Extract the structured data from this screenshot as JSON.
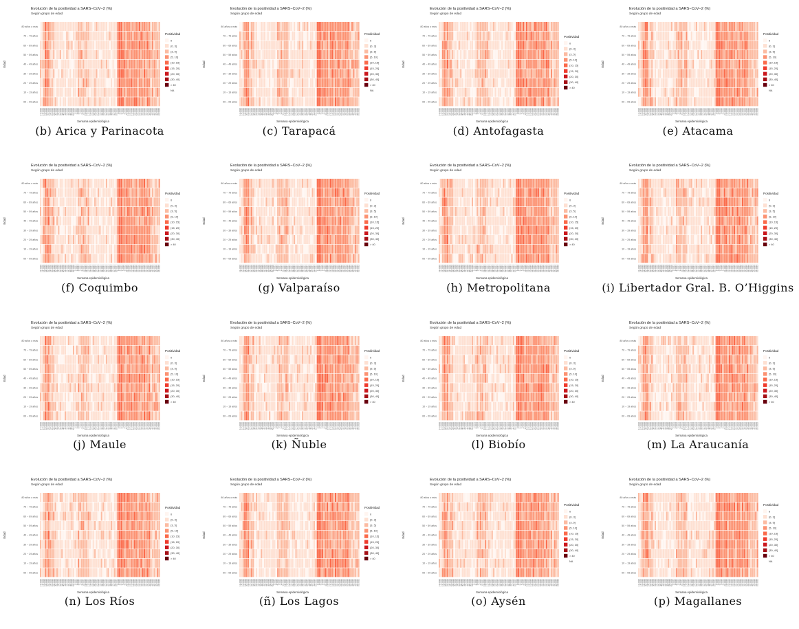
{
  "figure": {
    "panels": [
      {
        "caption": "(b)  Arica y Parinacota",
        "has_na": true
      },
      {
        "caption": "(c)  Tarapacá",
        "has_na": true
      },
      {
        "caption": "(d)  Antofagasta",
        "has_na": false
      },
      {
        "caption": "(e)  Atacama",
        "has_na": true
      },
      {
        "caption": "(f)  Coquimbo",
        "has_na": false
      },
      {
        "caption": "(g)  Valparaíso",
        "has_na": false
      },
      {
        "caption": "(h)  Metropolitana",
        "has_na": false
      },
      {
        "caption": "(i)  Libertador Gral. B. O’Higgins",
        "has_na": false
      },
      {
        "caption": "(j)  Maule",
        "has_na": false
      },
      {
        "caption": "(k)  Ñuble",
        "has_na": false
      },
      {
        "caption": "(l)  Biobío",
        "has_na": false
      },
      {
        "caption": "(m)  La Araucanía",
        "has_na": false
      },
      {
        "caption": "(n)  Los Ríos",
        "has_na": false
      },
      {
        "caption": "(ñ)  Los Lagos",
        "has_na": false
      },
      {
        "caption": "(o)  Aysén",
        "has_na": true
      },
      {
        "caption": "(p)  Magallanes",
        "has_na": true
      }
    ]
  },
  "chart_data": {
    "type": "heatmap",
    "title": "Evolución de la positividad a SARS−CoV−2 (%)",
    "subtitle": "Según grupo de edad",
    "xlabel": "Semana epidemiológica",
    "ylabel": "Edad",
    "y_categories": [
      "00 − 09 años",
      "10 − 19 años",
      "20 − 29 años",
      "30 − 39 años",
      "40 − 49 años",
      "50 − 59 años",
      "60 − 69 años",
      "70 − 79 años",
      "80 años o más"
    ],
    "x_categories": [
      "12-2020",
      "14-2020",
      "16-2020",
      "18-2020",
      "20-2020",
      "22-2020",
      "24-2020",
      "26-2020",
      "28-2020",
      "30-2020",
      "32-2020",
      "34-2020",
      "36-2020",
      "38-2020",
      "40-2020",
      "42-2020",
      "44-2020",
      "46-2020",
      "48-2020",
      "50-2020",
      "52-2020",
      "1-2021",
      "3-2021",
      "5-2021",
      "7-2021",
      "9-2021",
      "11-2021",
      "13-2021",
      "15-2021",
      "17-2021",
      "19-2021",
      "21-2021",
      "23-2021",
      "25-2021",
      "27-2021",
      "29-2021",
      "31-2021",
      "33-2021",
      "35-2021",
      "37-2021",
      "39-2021",
      "41-2021",
      "43-2021",
      "45-2021",
      "47-2021",
      "49-2021",
      "51-2021",
      "1-2022",
      "3-2022",
      "5-2022",
      "7-2022",
      "9-2022",
      "11-2022",
      "13-2022",
      "15-2022",
      "17-2022",
      "19-2022",
      "21-2022",
      "23-2022",
      "25-2022",
      "27-2022",
      "29-2022",
      "31-2022",
      "33-2022",
      "35-2022",
      "37-2022",
      "39-2022",
      "41-2022",
      "43-2022",
      "45-2022",
      "47-2022",
      "49-2022",
      "51-2022"
    ],
    "legend": {
      "title": "Positividad",
      "position": "right",
      "bins": [
        "0",
        "(0, 3]",
        "(3, 5]",
        "(5, 10]",
        "(10, 15]",
        "(15, 20]",
        "(20, 30]",
        "(30, 40]",
        "> 40"
      ],
      "colors": [
        "#fff5f0",
        "#fee0d2",
        "#fcbba1",
        "#fc9272",
        "#fb6a4a",
        "#ef3b2c",
        "#cb181d",
        "#a50f15",
        "#67000d"
      ],
      "na_label": "NA",
      "na_color": "#bdbdbd"
    },
    "pattern_profile": [
      1,
      1,
      2,
      3,
      3,
      3,
      2,
      2,
      2,
      1,
      1,
      1,
      1,
      1,
      1,
      1,
      1,
      1,
      1,
      1,
      1,
      1,
      1,
      2,
      2,
      2,
      2,
      2,
      2,
      2,
      1,
      1,
      1,
      1,
      1,
      1,
      1,
      1,
      1,
      1,
      1,
      1,
      1,
      1,
      1,
      1,
      1,
      4,
      4,
      4,
      3,
      3,
      3,
      3,
      3,
      3,
      3,
      3,
      3,
      3,
      3,
      3,
      3,
      3,
      3,
      3,
      3,
      2,
      2,
      2,
      2,
      2,
      2
    ]
  }
}
